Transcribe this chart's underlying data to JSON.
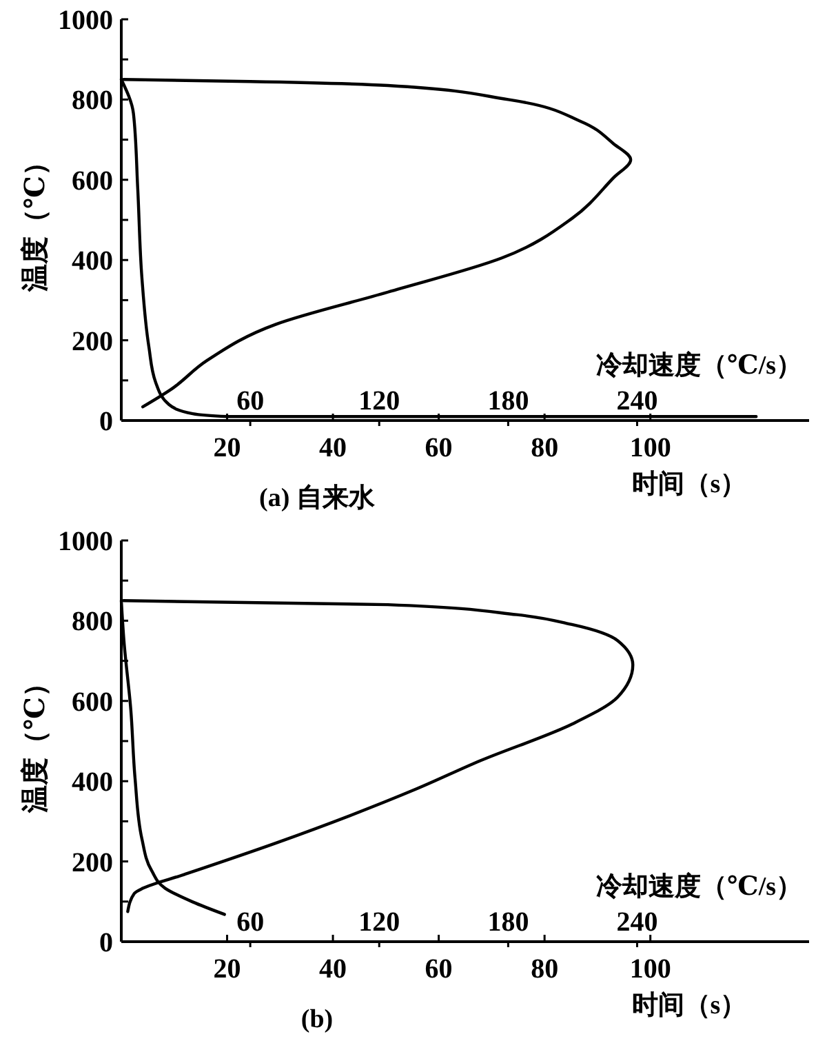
{
  "chart_data": [
    {
      "type": "line",
      "title": "(a) 自来水",
      "xlabel": "时间（s）",
      "ylabel": "温度（℃）",
      "x2label": "冷却速度（℃/s）",
      "xlim": [
        0,
        130
      ],
      "xticks": [
        20,
        40,
        60,
        80,
        100
      ],
      "x2lim": [
        0,
        320
      ],
      "x2ticks": [
        60,
        120,
        180,
        240
      ],
      "ylim": [
        0,
        1000
      ],
      "yticks": [
        0,
        {
          "value": 100,
          "label": null
        },
        200,
        {
          "value": 300,
          "label": null
        },
        400,
        {
          "value": 500,
          "label": null
        },
        600,
        {
          "value": 700,
          "label": null
        },
        800,
        {
          "value": 900,
          "label": null
        },
        1000
      ],
      "marker": "none",
      "line_style": "solid",
      "grid": false,
      "series": [
        {
          "color": "#000000",
          "x": [
            0,
            2.3,
            3.1,
            3.9,
            5.2,
            6.5,
            9,
            13.5,
            20,
            60,
            120
          ],
          "values": [
            850,
            765,
            580,
            355,
            185,
            95,
            40,
            17,
            10,
            10,
            10
          ]
        },
        {
          "color": "#000000",
          "axis": "x2",
          "x": [
            10,
            23,
            40,
            72,
            124,
            177,
            210,
            229,
            237,
            229,
            214,
            180,
            124,
            60,
            1
          ],
          "values": [
            34,
            77,
            150,
            240,
            320,
            405,
            505,
            605,
            650,
            690,
            745,
            800,
            835,
            845,
            850
          ]
        }
      ]
    },
    {
      "type": "line",
      "title": "(b)",
      "xlabel": "时间（s）",
      "ylabel": "温度（℃）",
      "x2label": "冷却速度（℃/s）",
      "xlim": [
        0,
        130
      ],
      "xticks": [
        20,
        40,
        60,
        80,
        100
      ],
      "x2lim": [
        0,
        320
      ],
      "x2ticks": [
        60,
        120,
        180,
        240
      ],
      "ylim": [
        0,
        1000
      ],
      "yticks": [
        0,
        {
          "value": 100,
          "label": null
        },
        200,
        {
          "value": 300,
          "label": null
        },
        400,
        {
          "value": 500,
          "label": null
        },
        600,
        {
          "value": 700,
          "label": null
        },
        800,
        {
          "value": 900,
          "label": null
        },
        1000
      ],
      "marker": "none",
      "line_style": "solid",
      "grid": false,
      "series": [
        {
          "color": "#000000",
          "x": [
            0,
            0.5,
            1.8,
            2.6,
            3.9,
            5.7,
            8.3,
            13.5,
            19.5
          ],
          "values": [
            850,
            750,
            578,
            407,
            256,
            178,
            133,
            99,
            68
          ]
        },
        {
          "color": "#000000",
          "axis": "x2",
          "x": [
            3,
            6,
            10,
            29,
            72,
            137,
            167,
            210,
            231,
            238,
            231,
            210,
            184,
            124,
            1
          ],
          "values": [
            75,
            120,
            133,
            167,
            246,
            380,
            451,
            543,
            610,
            690,
            750,
            790,
            815,
            840,
            850
          ]
        }
      ]
    }
  ]
}
